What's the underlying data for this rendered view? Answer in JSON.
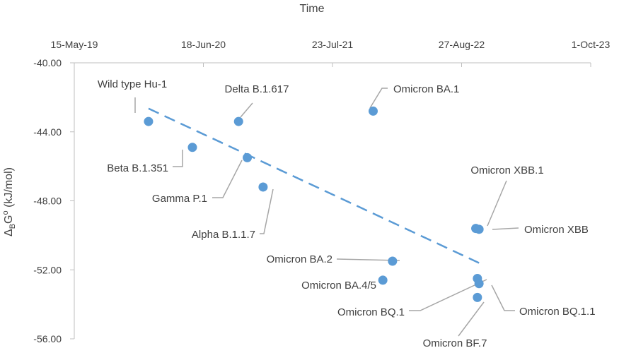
{
  "chart_data": {
    "type": "scatter",
    "title": "",
    "xlabel": "Time",
    "ylabel_parts": [
      "Δ",
      "B",
      "G",
      "o",
      " (kJ/mol)"
    ],
    "x_axis": {
      "type": "date",
      "position": "top",
      "range": [
        "2019-05-15",
        "2023-10-01"
      ],
      "ticks": [
        {
          "date": "2019-05-15",
          "label": "15-May-19"
        },
        {
          "date": "2020-06-18",
          "label": "18-Jun-20"
        },
        {
          "date": "2021-07-23",
          "label": "23-Jul-21"
        },
        {
          "date": "2022-08-27",
          "label": "27-Aug-22"
        },
        {
          "date": "2023-10-01",
          "label": "1-Oct-23"
        }
      ]
    },
    "y_axis": {
      "range": [
        -56,
        -40
      ],
      "ticks": [
        -40,
        -44,
        -48,
        -52,
        -56
      ],
      "tick_labels": [
        "-40.00",
        "-44.00",
        "-48.00",
        "-52.00",
        "-56.00"
      ]
    },
    "grid": false,
    "legend": "none",
    "colors": {
      "points": "#5b9bd5",
      "trend": "#5b9bd5",
      "leader": "#a6a6a6",
      "axis": "#bfbfbf",
      "text": "#404040"
    },
    "points": [
      {
        "name": "Wild type Hu-1",
        "x": "2019-12-31",
        "y": -43.4
      },
      {
        "name": "Beta B.1.351",
        "x": "2020-05-15",
        "y": -44.9
      },
      {
        "name": "Gamma P.1",
        "x": "2020-11-01",
        "y": -45.5
      },
      {
        "name": "Delta B.1.617",
        "x": "2020-10-05",
        "y": -43.4
      },
      {
        "name": "Alpha B.1.1.7",
        "x": "2020-12-20",
        "y": -47.2
      },
      {
        "name": "Omicron BA.1",
        "x": "2021-11-26",
        "y": -42.8
      },
      {
        "name": "Omicron BA.2",
        "x": "2022-01-25",
        "y": -51.5
      },
      {
        "name": "Omicron BA.4/5",
        "x": "2021-12-26",
        "y": -52.6
      },
      {
        "name": "Omicron XBB.1",
        "x": "2022-10-10",
        "y": -49.6
      },
      {
        "name": "Omicron XBB",
        "x": "2022-10-20",
        "y": -49.65
      },
      {
        "name": "Omicron BQ.1",
        "x": "2022-10-15",
        "y": -52.5
      },
      {
        "name": "Omicron BQ.1.1",
        "x": "2022-10-20",
        "y": -52.8
      },
      {
        "name": "Omicron BF.7",
        "x": "2022-10-15",
        "y": -53.6
      }
    ],
    "trendline": {
      "style": "dashed",
      "start": {
        "x": "2019-12-31",
        "y": -42.65
      },
      "end": {
        "x": "2022-10-20",
        "y": -51.6
      }
    }
  }
}
